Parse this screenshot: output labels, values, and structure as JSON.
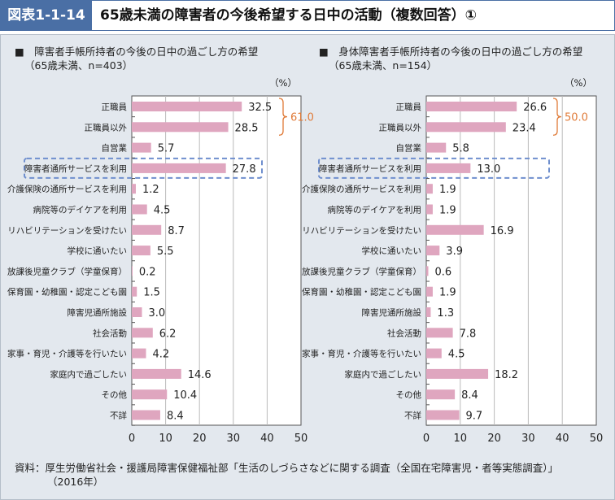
{
  "header": {
    "tag": "図表1-1-14",
    "title": "65歳未満の障害者の今後希望する日中の活動（複数回答）①"
  },
  "chart_data": [
    {
      "type": "bar",
      "title": "■　障害者手帳所持者の今後の日中の過ごし方の希望",
      "subtitle": "（65歳未満、n=403）",
      "unit": "（%）",
      "xlim": [
        0,
        50
      ],
      "ticks": [
        "0",
        "10",
        "20",
        "30",
        "40",
        "50"
      ],
      "categories": [
        "正職員",
        "正職員以外",
        "自営業",
        "障害者通所サービスを利用",
        "介護保険の通所サービスを利用",
        "病院等のデイケアを利用",
        "リハビリテーションを受けたい",
        "学校に通いたい",
        "放課後児童クラブ（学童保育）",
        "保育園・幼稚園・認定こども園",
        "障害児通所施設",
        "社会活動",
        "家事・育児・介護等を行いたい",
        "家庭内で過ごしたい",
        "その他",
        "不詳"
      ],
      "values": [
        32.5,
        28.5,
        5.7,
        27.8,
        1.2,
        4.5,
        8.7,
        5.5,
        0.2,
        1.5,
        3.0,
        6.2,
        4.2,
        14.6,
        10.4,
        8.4
      ],
      "value_labels": [
        "32.5",
        "28.5",
        "5.7",
        "27.8",
        "1.2",
        "4.5",
        "8.7",
        "5.5",
        "0.2",
        "1.5",
        "3.0",
        "6.2",
        "4.2",
        "14.6",
        "10.4",
        "8.4"
      ],
      "bracket": {
        "label": "61.0",
        "rows": [
          0,
          1
        ]
      },
      "highlight_row": 3
    },
    {
      "type": "bar",
      "title": "■　身体障害者手帳所持者の今後の日中の過ごし方の希望",
      "subtitle": "（65歳未満、n=154）",
      "unit": "（%）",
      "xlim": [
        0,
        50
      ],
      "ticks": [
        "0",
        "10",
        "20",
        "30",
        "40",
        "50"
      ],
      "categories": [
        "正職員",
        "正職員以外",
        "自営業",
        "障害者通所サービスを利用",
        "介護保険の通所サービスを利用",
        "病院等のデイケアを利用",
        "リハビリテーションを受けたい",
        "学校に通いたい",
        "放課後児童クラブ（学童保育）",
        "保育園・幼稚園・認定こども園",
        "障害児通所施設",
        "社会活動",
        "家事・育児・介護等を行いたい",
        "家庭内で過ごしたい",
        "その他",
        "不詳"
      ],
      "values": [
        26.6,
        23.4,
        5.8,
        13.0,
        1.9,
        1.9,
        16.9,
        3.9,
        0.6,
        1.9,
        1.3,
        7.8,
        4.5,
        18.2,
        8.4,
        9.7
      ],
      "value_labels": [
        "26.6",
        "23.4",
        "5.8",
        "13.0",
        "1.9",
        "1.9",
        "16.9",
        "3.9",
        "0.6",
        "1.9",
        "1.3",
        "7.8",
        "4.5",
        "18.2",
        "8.4",
        "9.7"
      ],
      "bracket": {
        "label": "50.0",
        "rows": [
          0,
          1
        ]
      },
      "highlight_row": 3
    }
  ],
  "colors": {
    "bar": "#dfa6bf",
    "accent": "#e07b39",
    "highlight": "#6f8fce",
    "header": "#4a6fa5"
  },
  "footer": {
    "line1": "資料：厚生労働省社会・援護局障害保健福祉部「生活のしづらさなどに関する調査（全国在宅障害児・者等実態調査）」",
    "line2": "（2016年）"
  }
}
